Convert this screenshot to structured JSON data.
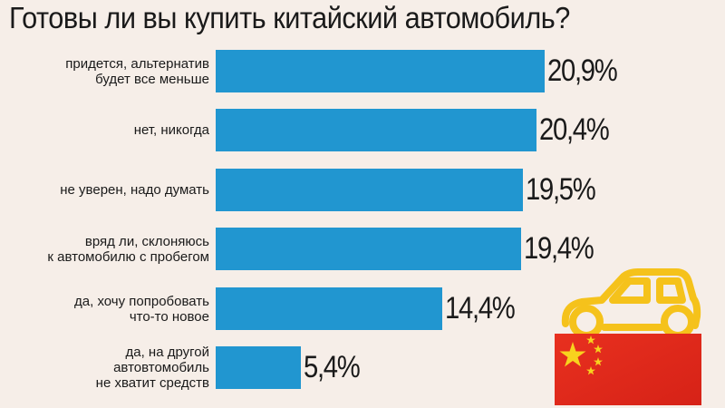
{
  "chart_data": {
    "type": "bar",
    "orientation": "horizontal",
    "title": "Готовы ли вы купить китайский автомобиль?",
    "categories": [
      [
        "придется, альтернатив",
        "будет все меньше"
      ],
      [
        "нет, никогда"
      ],
      [
        "не уверен, надо думать"
      ],
      [
        "вряд ли, склоняюсь",
        "к автомобилю с пробегом"
      ],
      [
        "да, хочу попробовать",
        "что-то новое"
      ],
      [
        "да, на другой",
        "автовтомобиль",
        "не хватит средств"
      ]
    ],
    "values": [
      20.9,
      20.4,
      19.5,
      19.4,
      14.4,
      5.4
    ],
    "value_labels": [
      "20,9%",
      "20,4%",
      "19,5%",
      "19,4%",
      "14,4%",
      "5,4%"
    ],
    "xlim": [
      0,
      20.9
    ],
    "grid": false,
    "legend": "none",
    "bar_color": "#2196d0"
  },
  "colors": {
    "background": "#f6eee8",
    "car": "#f5c21b",
    "flag_red": "#e02a1e",
    "flag_star": "#f8d21e"
  },
  "illustration": {
    "icons": [
      "car-icon",
      "china-flag-icon"
    ]
  }
}
